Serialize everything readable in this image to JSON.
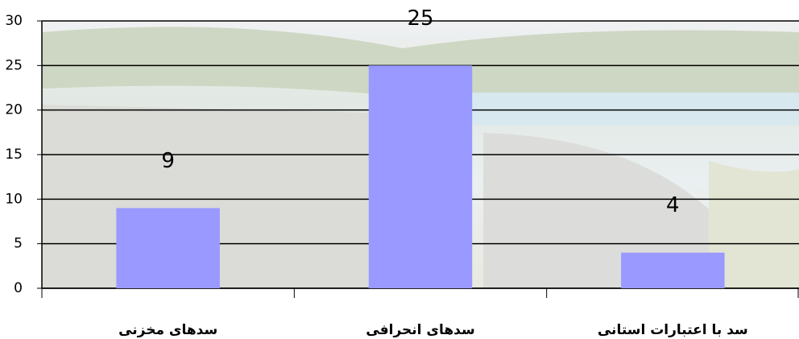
{
  "chart_data": {
    "type": "bar",
    "categories": [
      "سدهای مخزنی",
      "سدهای انحرافی",
      "سد با اعتبارات استانی"
    ],
    "values": [
      9,
      25,
      4
    ],
    "color": "#9999ff",
    "ylim": [
      0,
      30
    ],
    "yticks": [
      0,
      5,
      10,
      15,
      20,
      25,
      30
    ],
    "grid": true
  }
}
